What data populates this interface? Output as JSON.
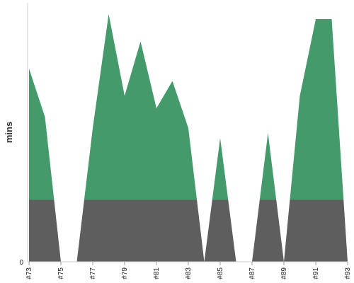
{
  "chart_data": {
    "type": "area",
    "ylabel": "mins",
    "xlabel": "",
    "title": "",
    "ylim": [
      0,
      100
    ],
    "y_ticks": [
      "0"
    ],
    "x": [
      73,
      74,
      75,
      76,
      77,
      78,
      79,
      80,
      81,
      82,
      83,
      84,
      85,
      86,
      87,
      88,
      89,
      90,
      91,
      92,
      93
    ],
    "x_tick_labels": [
      "#73",
      "#75",
      "#77",
      "#79",
      "#81",
      "#83",
      "#85",
      "#87",
      "#89",
      "#91",
      "#93"
    ],
    "x_tick_values": [
      73,
      75,
      77,
      79,
      81,
      83,
      85,
      87,
      89,
      91,
      93
    ],
    "series": [
      {
        "color": "#449a6a",
        "values": [
          78,
          58.5,
          0,
          0,
          54,
          100,
          67,
          89,
          62,
          73,
          54,
          0,
          50,
          0,
          0,
          52,
          0,
          67,
          98,
          98,
          0
        ]
      }
    ],
    "colors": {
      "above_threshold": "#449a6a",
      "below_threshold": "#5e5e5e"
    },
    "threshold": 25,
    "grid": false,
    "legend": "none"
  }
}
